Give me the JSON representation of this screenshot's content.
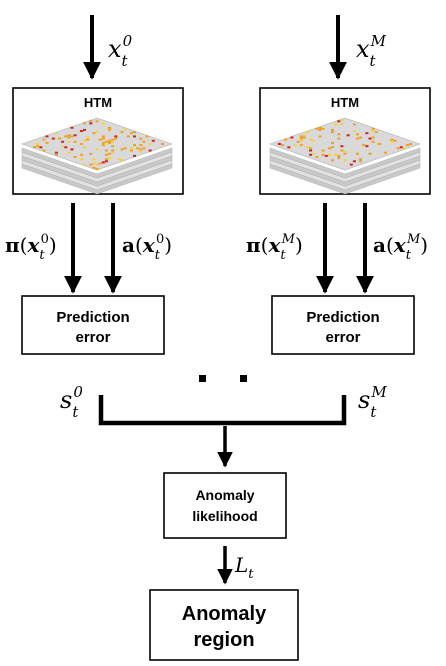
{
  "diagram": {
    "htm_left": {
      "title": "HTM"
    },
    "htm_right": {
      "title": "HTM"
    },
    "inputs": {
      "left": {
        "base": "x",
        "sub": "t",
        "sup": "0"
      },
      "right": {
        "base": "x",
        "sub": "t",
        "sup": "M"
      }
    },
    "outputs": {
      "pi_left": {
        "fn": "π",
        "arg": "x",
        "sub": "t",
        "sup": "0"
      },
      "a_left": {
        "fn": "a",
        "arg": "x",
        "sub": "t",
        "sup": "0"
      },
      "pi_right": {
        "fn": "π",
        "arg": "x",
        "sub": "t",
        "sup": "M"
      },
      "a_right": {
        "fn": "a",
        "arg": "x",
        "sub": "t",
        "sup": "M"
      }
    },
    "pred_left": {
      "line1": "Prediction",
      "line2": "error"
    },
    "pred_right": {
      "line1": "Prediction",
      "line2": "error"
    },
    "ellipsis": "· ·",
    "scores": {
      "left": {
        "base": "s",
        "sub": "t",
        "sup": "0"
      },
      "right": {
        "base": "s",
        "sub": "t",
        "sup": "M"
      }
    },
    "likelihood": {
      "line1": "Anomaly",
      "line2": "likelihood"
    },
    "L": {
      "base": "L",
      "sub": "t"
    },
    "region": {
      "line1": "Anomaly",
      "line2": "region"
    },
    "colors": {
      "line": "#000000",
      "grid_gray": "#d9d9d9",
      "grid_line": "#b0b0b0",
      "cell_orange": "#f0a020",
      "cell_red": "#d62020",
      "cell_yellow": "#f5d040"
    }
  }
}
